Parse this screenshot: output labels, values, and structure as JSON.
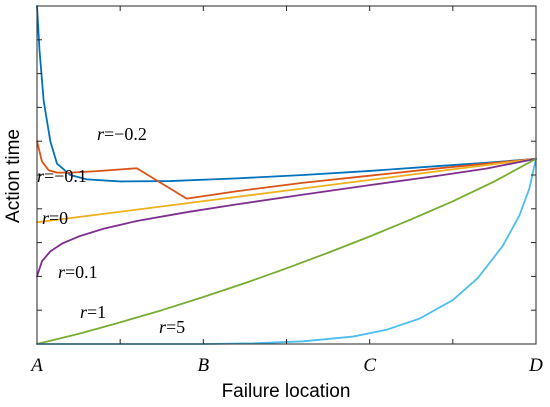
{
  "chart_data": {
    "type": "line",
    "xlabel": "Failure location",
    "ylabel": "Action time",
    "x_ticks": [
      "A",
      "B",
      "C",
      "D"
    ],
    "xlim": [
      0,
      3
    ],
    "ylim": [
      0,
      1
    ],
    "grid": false,
    "series": [
      {
        "name_var": "r",
        "name_val": "=−0.2",
        "color": "#0072BD",
        "points": [
          [
            0.0,
            1.0
          ],
          [
            0.015,
            0.87
          ],
          [
            0.04,
            0.72
          ],
          [
            0.08,
            0.6
          ],
          [
            0.12,
            0.534
          ],
          [
            0.2,
            0.5
          ],
          [
            0.3,
            0.487
          ],
          [
            0.5,
            0.481
          ],
          [
            0.8,
            0.482
          ],
          [
            1.2,
            0.49
          ],
          [
            1.6,
            0.5
          ],
          [
            2.0,
            0.512
          ],
          [
            2.4,
            0.526
          ],
          [
            2.7,
            0.536
          ],
          [
            3.0,
            0.548
          ]
        ]
      },
      {
        "name_var": "r",
        "name_val": "=−0.1",
        "color": "#D95319",
        "points": [
          [
            0.0,
            0.6
          ],
          [
            0.03,
            0.54
          ],
          [
            0.07,
            0.514
          ],
          [
            0.12,
            0.507
          ],
          [
            0.2,
            0.507
          ],
          [
            0.35,
            0.511
          ],
          [
            0.6,
            0.52
          ],
          [
            0.9,
            0.43
          ],
          [
            1.2,
            0.452
          ],
          [
            1.6,
            0.477
          ],
          [
            2.0,
            0.498
          ],
          [
            2.4,
            0.519
          ],
          [
            3.0,
            0.548
          ]
        ]
      },
      {
        "name_var": "r",
        "name_val": "=0",
        "color": "#EDB120",
        "points": [
          [
            0.0,
            0.36
          ],
          [
            3.0,
            0.548
          ]
        ]
      },
      {
        "name_var": "r",
        "name_val": "=0.1",
        "color": "#7E2F8E",
        "points": [
          [
            0.0,
            0.2
          ],
          [
            0.03,
            0.245
          ],
          [
            0.08,
            0.274
          ],
          [
            0.15,
            0.297
          ],
          [
            0.25,
            0.318
          ],
          [
            0.4,
            0.341
          ],
          [
            0.6,
            0.364
          ],
          [
            0.9,
            0.39
          ],
          [
            1.2,
            0.413
          ],
          [
            1.6,
            0.442
          ],
          [
            2.0,
            0.47
          ],
          [
            2.4,
            0.497
          ],
          [
            2.7,
            0.519
          ],
          [
            3.0,
            0.548
          ]
        ]
      },
      {
        "name_var": "r",
        "name_val": "=1",
        "color": "#77AC30",
        "points": [
          [
            0.0,
            0.0
          ],
          [
            0.25,
            0.03
          ],
          [
            0.5,
            0.064
          ],
          [
            0.75,
            0.1
          ],
          [
            1.0,
            0.139
          ],
          [
            1.25,
            0.18
          ],
          [
            1.5,
            0.224
          ],
          [
            1.75,
            0.27
          ],
          [
            2.0,
            0.318
          ],
          [
            2.25,
            0.369
          ],
          [
            2.5,
            0.422
          ],
          [
            2.75,
            0.481
          ],
          [
            3.0,
            0.548
          ]
        ]
      },
      {
        "name_var": "r",
        "name_val": "=5",
        "color": "#4DBEEE",
        "points": [
          [
            0.0,
            0.0
          ],
          [
            1.0,
            0.0
          ],
          [
            1.3,
            0.002
          ],
          [
            1.6,
            0.008
          ],
          [
            1.9,
            0.022
          ],
          [
            2.1,
            0.042
          ],
          [
            2.3,
            0.075
          ],
          [
            2.5,
            0.13
          ],
          [
            2.65,
            0.195
          ],
          [
            2.8,
            0.29
          ],
          [
            2.9,
            0.38
          ],
          [
            2.96,
            0.46
          ],
          [
            3.0,
            0.548
          ]
        ]
      }
    ]
  }
}
